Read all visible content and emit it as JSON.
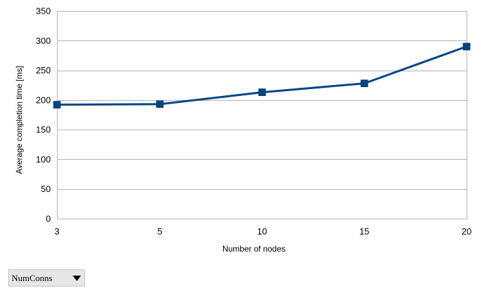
{
  "chart_data": {
    "type": "line",
    "x": [
      3,
      5,
      10,
      15,
      20
    ],
    "series": [
      {
        "values": [
          192,
          193,
          213,
          228,
          290
        ]
      }
    ],
    "x_tick_labels": [
      "3",
      "5",
      "10",
      "15",
      "20"
    ],
    "y_ticks": [
      0,
      50,
      100,
      150,
      200,
      250,
      300,
      350
    ],
    "ylim": [
      0,
      350
    ],
    "xlabel": "Number of nodes",
    "ylabel": "Average completion time [ms]",
    "grid": true,
    "line_color": "#004586",
    "grid_color": "#b3b3b3"
  },
  "field_selector": {
    "selected": "NumConns"
  }
}
